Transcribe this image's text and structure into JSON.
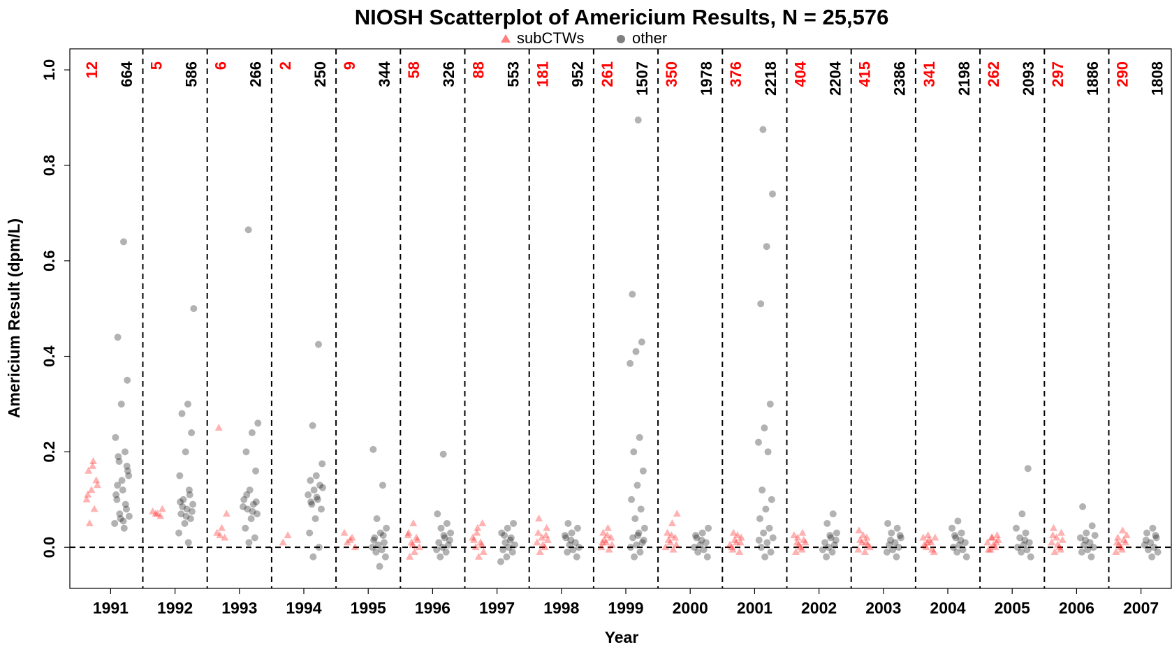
{
  "chart_data": {
    "type": "scatter",
    "title": "NIOSH Scatterplot of Americium Results, N = 25,576",
    "x_label": "Year",
    "y_label": "Americium Result (dpm/L)",
    "categories": [
      "1991",
      "1992",
      "1993",
      "1994",
      "1995",
      "1996",
      "1997",
      "1998",
      "1999",
      "2000",
      "2001",
      "2002",
      "2003",
      "2004",
      "2005",
      "2006",
      "2007"
    ],
    "ylim": [
      -0.086,
      1.044
    ],
    "yticks": [
      {
        "value": 0,
        "label": "0.0"
      },
      0.2,
      0.4,
      0.6,
      0.8,
      {
        "value": 1,
        "label": "1.0"
      }
    ],
    "hline": 0,
    "series": [
      {
        "name": "subCTWs",
        "color": "#ff0000",
        "marker": "triangle",
        "counts": [
          12,
          5,
          6,
          2,
          9,
          58,
          88,
          181,
          261,
          350,
          376,
          404,
          415,
          341,
          262,
          297,
          290
        ],
        "values": [
          [
            0.18,
            0.16,
            0.14,
            0.12,
            0.1,
            0.08,
            0.05,
            0.13,
            0.17,
            0.11
          ],
          [
            0.08,
            0.07,
            0.075,
            0.065,
            0.07
          ],
          [
            0.25,
            0.07,
            0.04,
            0.03,
            0.02,
            0.025
          ],
          [
            0.025,
            0.01
          ],
          [
            0.03,
            0.02,
            0.01,
            0,
            0.015
          ],
          [
            0.05,
            0.03,
            0.02,
            0.01,
            0,
            -0.01,
            -0.02,
            0.015,
            0.005,
            0.025
          ],
          [
            0.05,
            0.04,
            0.02,
            0.01,
            0,
            -0.01,
            -0.02,
            0.015,
            0.005,
            0.03
          ],
          [
            0.06,
            0.04,
            0.02,
            0.01,
            0,
            -0.01,
            0.015,
            0.005,
            0.03,
            0.025
          ],
          [
            0.04,
            0.03,
            0.02,
            0.01,
            0,
            -0.005,
            0.015,
            0.005,
            0.025,
            0.01
          ],
          [
            0.07,
            0.05,
            0.03,
            0.02,
            0.01,
            0,
            -0.005,
            0.015,
            0.005,
            0.025
          ],
          [
            0.03,
            0.02,
            0.01,
            0,
            -0.01,
            0.015,
            0.005,
            0.025,
            -0.005,
            0.01
          ],
          [
            0.03,
            0.02,
            0.01,
            0,
            -0.01,
            0.015,
            0.005,
            0.025,
            -0.005,
            0.01
          ],
          [
            0.035,
            0.02,
            0.01,
            0,
            -0.01,
            0.015,
            0.005,
            0.025,
            -0.005,
            0.01
          ],
          [
            0.025,
            0.02,
            0.01,
            0,
            -0.01,
            0.015,
            0.005,
            -0.005,
            0.01,
            0.02
          ],
          [
            0.025,
            0.02,
            0.01,
            0,
            -0.005,
            0.015,
            0.005,
            -0.005,
            0.01,
            0.02
          ],
          [
            0.04,
            0.03,
            0.02,
            0.01,
            0,
            -0.01,
            0.015,
            0.005,
            0.025,
            -0.005
          ],
          [
            0.035,
            0.02,
            0.01,
            0,
            -0.01,
            0.015,
            0.005,
            0.025,
            -0.005,
            0.01
          ]
        ]
      },
      {
        "name": "other",
        "color": "#000000",
        "marker": "circle",
        "counts": [
          664,
          586,
          266,
          250,
          344,
          326,
          553,
          952,
          1507,
          1978,
          2218,
          2204,
          2386,
          2198,
          2093,
          1886,
          1808
        ],
        "values": [
          [
            0.64,
            0.44,
            0.35,
            0.3,
            0.23,
            0.2,
            0.18,
            0.15,
            0.12,
            0.1,
            0.08,
            0.06,
            0.05,
            0.04,
            0.19,
            0.16,
            0.14,
            0.11,
            0.09,
            0.07,
            0.065,
            0.055,
            0.13,
            0.17
          ],
          [
            0.5,
            0.3,
            0.28,
            0.24,
            0.2,
            0.15,
            0.12,
            0.1,
            0.09,
            0.08,
            0.07,
            0.06,
            0.05,
            0.03,
            0.01,
            0.085,
            0.075,
            0.065,
            0.095,
            0.11
          ],
          [
            0.665,
            0.26,
            0.24,
            0.2,
            0.16,
            0.12,
            0.1,
            0.09,
            0.08,
            0.07,
            0.06,
            0.04,
            0.02,
            0.01,
            0.085,
            0.075,
            0.11,
            0.095
          ],
          [
            0.425,
            0.255,
            0.175,
            0.15,
            0.14,
            0.13,
            0.12,
            0.11,
            0.1,
            0.09,
            0.08,
            0.06,
            0.03,
            0,
            -0.02,
            0.125,
            0.105,
            0.095
          ],
          [
            0.205,
            0.13,
            0.06,
            0.04,
            0.03,
            0.02,
            0.01,
            0.005,
            0,
            -0.005,
            -0.01,
            -0.02,
            -0.04,
            0.015,
            0.025
          ],
          [
            0.195,
            0.07,
            0.05,
            0.04,
            0.03,
            0.02,
            0.01,
            0.005,
            0,
            -0.005,
            -0.01,
            -0.02,
            0.015,
            0.025
          ],
          [
            0.05,
            0.04,
            0.03,
            0.02,
            0.01,
            0.005,
            0,
            -0.005,
            -0.01,
            -0.02,
            -0.03,
            0.015,
            0.025
          ],
          [
            0.05,
            0.04,
            0.03,
            0.02,
            0.01,
            0.005,
            0,
            -0.005,
            -0.01,
            -0.02,
            0.015,
            0.025
          ],
          [
            0.895,
            0.53,
            0.43,
            0.41,
            0.385,
            0.23,
            0.2,
            0.16,
            0.13,
            0.1,
            0.08,
            0.06,
            0.04,
            0.03,
            0.02,
            0.01,
            0.005,
            0,
            -0.01,
            -0.02,
            0.015,
            0.025
          ],
          [
            0.04,
            0.03,
            0.02,
            0.01,
            0.005,
            0,
            -0.005,
            -0.01,
            -0.02,
            0.015,
            0.025
          ],
          [
            0.875,
            0.74,
            0.63,
            0.51,
            0.3,
            0.25,
            0.22,
            0.2,
            0.12,
            0.1,
            0.08,
            0.06,
            0.04,
            0.03,
            0.02,
            0.01,
            0,
            -0.01,
            -0.02,
            0.015
          ],
          [
            0.07,
            0.05,
            0.03,
            0.02,
            0.01,
            0.005,
            0,
            -0.005,
            -0.01,
            -0.02,
            0.015,
            0.025
          ],
          [
            0.05,
            0.04,
            0.03,
            0.02,
            0.01,
            0.005,
            0,
            -0.005,
            -0.01,
            -0.02,
            0.015,
            0.025
          ],
          [
            0.055,
            0.04,
            0.03,
            0.02,
            0.01,
            0.005,
            0,
            -0.005,
            -0.01,
            -0.02,
            0.015,
            0.025
          ],
          [
            0.165,
            0.07,
            0.04,
            0.03,
            0.02,
            0.01,
            0.005,
            0,
            -0.005,
            -0.01,
            -0.02,
            0.015
          ],
          [
            0.085,
            0.045,
            0.03,
            0.02,
            0.01,
            0.005,
            0,
            -0.005,
            -0.01,
            -0.02,
            0.015,
            0.025
          ],
          [
            0.04,
            0.03,
            0.02,
            0.01,
            0.005,
            0,
            -0.005,
            -0.01,
            -0.02,
            0.015,
            0.025
          ]
        ]
      }
    ]
  }
}
